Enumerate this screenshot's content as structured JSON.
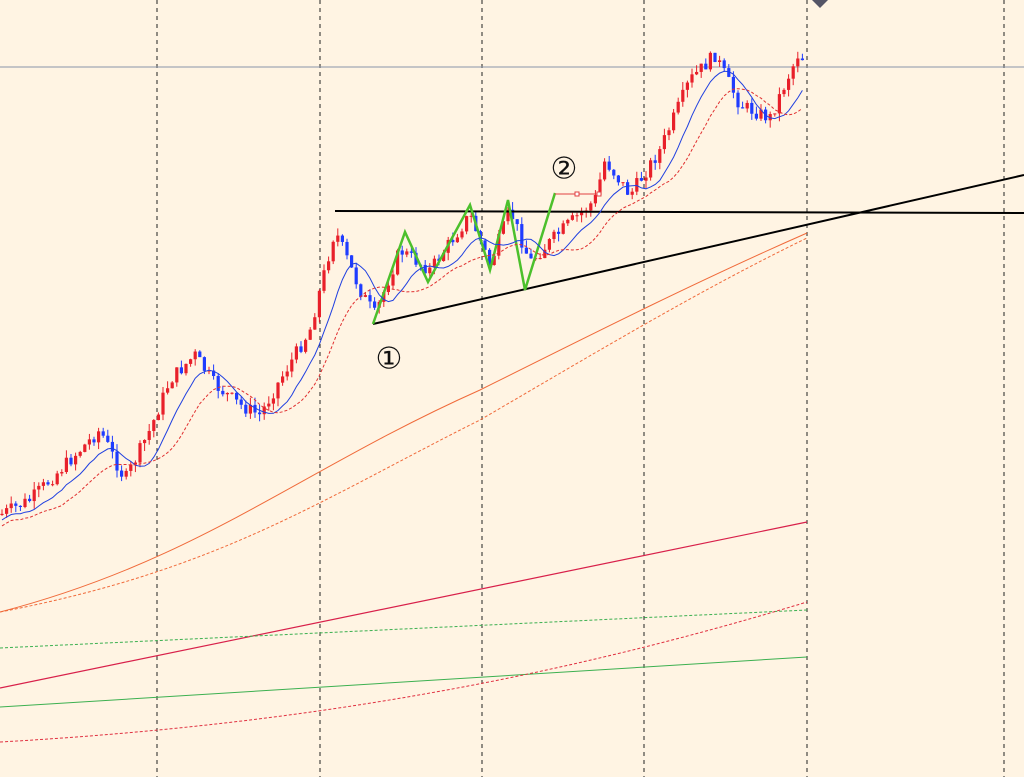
{
  "annotations": {
    "labels": [
      "①",
      "②"
    ]
  }
}
